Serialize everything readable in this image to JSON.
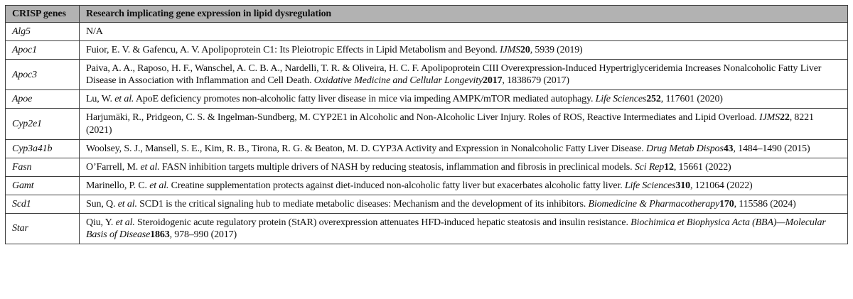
{
  "colors": {
    "header_bg": "#b2b2b2",
    "border": "#3d3d3d",
    "text": "#111111",
    "page_bg": "#ffffff"
  },
  "table": {
    "columns": [
      {
        "label": "CRISP genes"
      },
      {
        "label": "Research implicating gene expression in lipid dysregulation"
      }
    ],
    "rows": [
      {
        "gene": "Alg5",
        "reference": [
          {
            "t": "N/A",
            "s": "n"
          }
        ]
      },
      {
        "gene": "Apoc1",
        "reference": [
          {
            "t": "Fuior, E. V. & Gafencu, A. V. Apolipoprotein C1: Its Pleiotropic Effects in Lipid Metabolism and Beyond. ",
            "s": "n"
          },
          {
            "t": "IJMS",
            "s": "i"
          },
          {
            "t": "20",
            "s": "b"
          },
          {
            "t": ", 5939 (2019)",
            "s": "n"
          }
        ]
      },
      {
        "gene": "Apoc3",
        "reference": [
          {
            "t": "Paiva, A. A., Raposo, H. F., Wanschel, A. C. B. A., Nardelli, T. R. & Oliveira, H. C. F. Apolipoprotein CIII Overexpression-Induced Hypertriglyceridemia Increases Nonalcoholic Fatty Liver Disease in Association with Inflammation and Cell Death. ",
            "s": "n"
          },
          {
            "t": "Oxidative Medicine and Cellular Longevity",
            "s": "i"
          },
          {
            "t": "2017",
            "s": "b"
          },
          {
            "t": ", 1838679 (2017)",
            "s": "n"
          }
        ]
      },
      {
        "gene": "Apoe",
        "reference": [
          {
            "t": "Lu, W. ",
            "s": "n"
          },
          {
            "t": "et al.",
            "s": "i"
          },
          {
            "t": " ApoE deficiency promotes non-alcoholic fatty liver disease in mice via impeding AMPK/mTOR mediated autophagy. ",
            "s": "n"
          },
          {
            "t": "Life Sciences",
            "s": "i"
          },
          {
            "t": "252",
            "s": "b"
          },
          {
            "t": ", 117601 (2020)",
            "s": "n"
          }
        ]
      },
      {
        "gene": "Cyp2e1",
        "reference": [
          {
            "t": "Harjumäki, R., Pridgeon, C. S. & Ingelman-Sundberg, M. CYP2E1 in Alcoholic and Non-Alcoholic Liver Injury. Roles of ROS, Reactive Intermediates and Lipid Overload. ",
            "s": "n"
          },
          {
            "t": "IJMS",
            "s": "i"
          },
          {
            "t": "22",
            "s": "b"
          },
          {
            "t": ", 8221 (2021)",
            "s": "n"
          }
        ]
      },
      {
        "gene": "Cyp3a41b",
        "reference": [
          {
            "t": "Woolsey, S. J., Mansell, S. E., Kim, R. B., Tirona, R. G. & Beaton, M. D. CYP3A Activity and Expression in Nonalcoholic Fatty Liver Disease. ",
            "s": "n"
          },
          {
            "t": "Drug Metab Dispos",
            "s": "i"
          },
          {
            "t": "43",
            "s": "b"
          },
          {
            "t": ", 1484–1490 (2015)",
            "s": "n"
          }
        ]
      },
      {
        "gene": "Fasn",
        "reference": [
          {
            "t": "O’Farrell, M. ",
            "s": "n"
          },
          {
            "t": "et al.",
            "s": "i"
          },
          {
            "t": " FASN inhibition targets multiple drivers of NASH by reducing steatosis, inflammation and fibrosis in preclinical models. ",
            "s": "n"
          },
          {
            "t": "Sci Rep",
            "s": "i"
          },
          {
            "t": "12",
            "s": "b"
          },
          {
            "t": ", 15661 (2022)",
            "s": "n"
          }
        ]
      },
      {
        "gene": "Gamt",
        "reference": [
          {
            "t": "Marinello, P. C. ",
            "s": "n"
          },
          {
            "t": "et al.",
            "s": "i"
          },
          {
            "t": " Creatine supplementation protects against diet-induced non-alcoholic fatty liver but exacerbates alcoholic fatty liver. ",
            "s": "n"
          },
          {
            "t": "Life Sciences",
            "s": "i"
          },
          {
            "t": "310",
            "s": "b"
          },
          {
            "t": ", 121064 (2022)",
            "s": "n"
          }
        ]
      },
      {
        "gene": "Scd1",
        "reference": [
          {
            "t": "Sun, Q. ",
            "s": "n"
          },
          {
            "t": "et al.",
            "s": "i"
          },
          {
            "t": " SCD1 is the critical signaling hub to mediate metabolic diseases: Mechanism and the development of its inhibitors. ",
            "s": "n"
          },
          {
            "t": "Biomedicine & Pharmacotherapy",
            "s": "i"
          },
          {
            "t": "170",
            "s": "b"
          },
          {
            "t": ", 115586 (2024)",
            "s": "n"
          }
        ]
      },
      {
        "gene": "Star",
        "reference": [
          {
            "t": "Qiu, Y. ",
            "s": "n"
          },
          {
            "t": "et al.",
            "s": "i"
          },
          {
            "t": " Steroidogenic acute regulatory protein (StAR) overexpression attenuates HFD-induced hepatic steatosis and insulin resistance. ",
            "s": "n"
          },
          {
            "t": "Biochimica et Biophysica Acta (BBA)—Molecular Basis of Disease",
            "s": "i"
          },
          {
            "t": "1863",
            "s": "b"
          },
          {
            "t": ", 978–990 (2017)",
            "s": "n"
          }
        ]
      }
    ]
  }
}
